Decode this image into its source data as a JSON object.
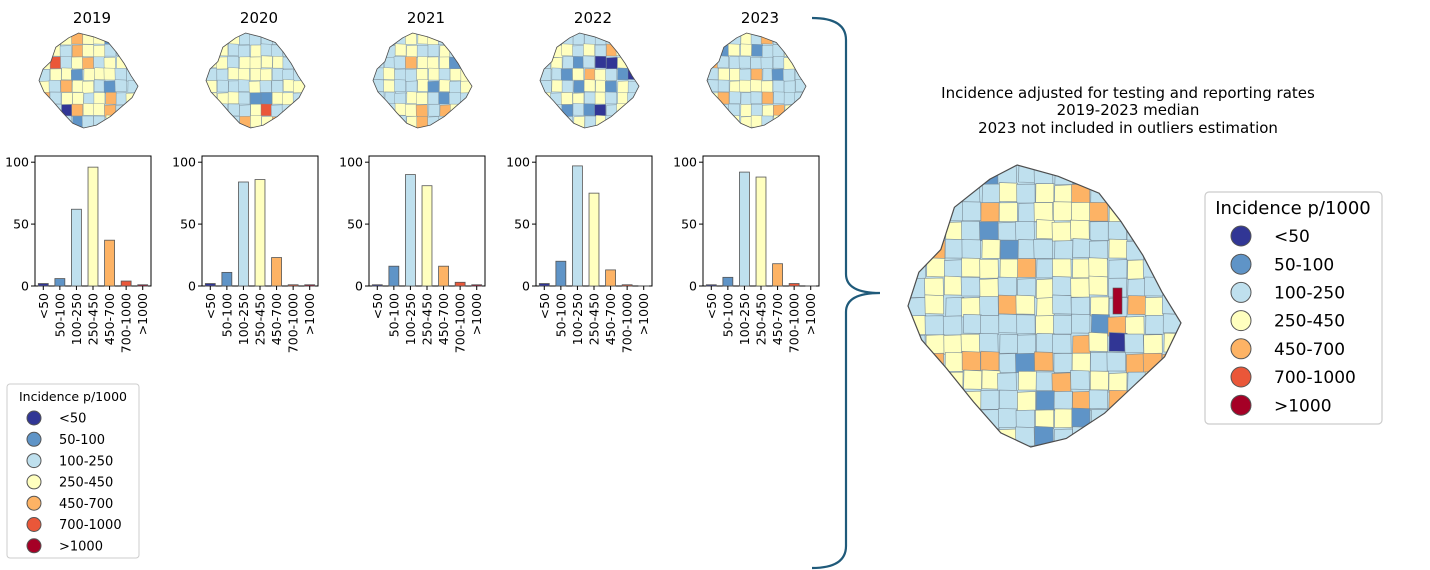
{
  "legend_title": "Incidence p/1000",
  "categories": [
    "<50",
    "50-100",
    "100-250",
    "250-450",
    "450-700",
    "700-1000",
    ">1000"
  ],
  "colors": [
    "#313695",
    "#5f94c7",
    "#bfe0ee",
    "#ffffbf",
    "#fdb365",
    "#ea5739",
    "#a50026"
  ],
  "median_map": {
    "title_lines": [
      "Incidence adjusted for testing and reporting rates",
      "2019-2023 median",
      "2023 not included in outliers estimation"
    ]
  },
  "chart_data": [
    {
      "type": "bar",
      "title": "2019",
      "categories": [
        "<50",
        "50-100",
        "100-250",
        "250-450",
        "450-700",
        "700-1000",
        ">1000"
      ],
      "values": [
        2,
        6,
        62,
        96,
        37,
        4,
        1
      ],
      "ylim": [
        0,
        105
      ],
      "yticks": [
        0,
        50,
        100
      ],
      "xlabel": "",
      "ylabel": ""
    },
    {
      "type": "bar",
      "title": "2020",
      "categories": [
        "<50",
        "50-100",
        "100-250",
        "250-450",
        "450-700",
        "700-1000",
        ">1000"
      ],
      "values": [
        2,
        11,
        84,
        86,
        23,
        1,
        1
      ],
      "ylim": [
        0,
        105
      ],
      "yticks": [
        0,
        50,
        100
      ],
      "xlabel": "",
      "ylabel": ""
    },
    {
      "type": "bar",
      "title": "2021",
      "categories": [
        "<50",
        "50-100",
        "100-250",
        "250-450",
        "450-700",
        "700-1000",
        ">1000"
      ],
      "values": [
        1,
        16,
        90,
        81,
        16,
        3,
        1
      ],
      "ylim": [
        0,
        105
      ],
      "yticks": [
        0,
        50,
        100
      ],
      "xlabel": "",
      "ylabel": ""
    },
    {
      "type": "bar",
      "title": "2022",
      "categories": [
        "<50",
        "50-100",
        "100-250",
        "250-450",
        "450-700",
        "700-1000",
        ">1000"
      ],
      "values": [
        2,
        20,
        97,
        75,
        13,
        1,
        0
      ],
      "ylim": [
        0,
        105
      ],
      "yticks": [
        0,
        50,
        100
      ],
      "xlabel": "",
      "ylabel": ""
    },
    {
      "type": "bar",
      "title": "2023",
      "categories": [
        "<50",
        "50-100",
        "100-250",
        "250-450",
        "450-700",
        "700-1000",
        ">1000"
      ],
      "values": [
        1,
        7,
        92,
        88,
        18,
        2,
        0
      ],
      "ylim": [
        0,
        105
      ],
      "yticks": [
        0,
        50,
        100
      ],
      "xlabel": "",
      "ylabel": ""
    }
  ]
}
